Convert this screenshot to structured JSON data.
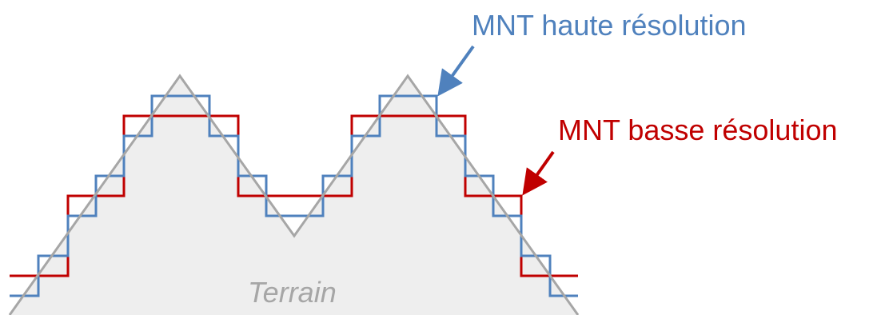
{
  "labels": {
    "high_res": "MNT haute résolution",
    "low_res": "MNT basse résolution",
    "terrain": "Terrain"
  },
  "colors": {
    "high_res": "#4f81bd",
    "low_res": "#c00000",
    "terrain_line": "#a6a6a6",
    "terrain_fill": "#eeeeee"
  }
}
